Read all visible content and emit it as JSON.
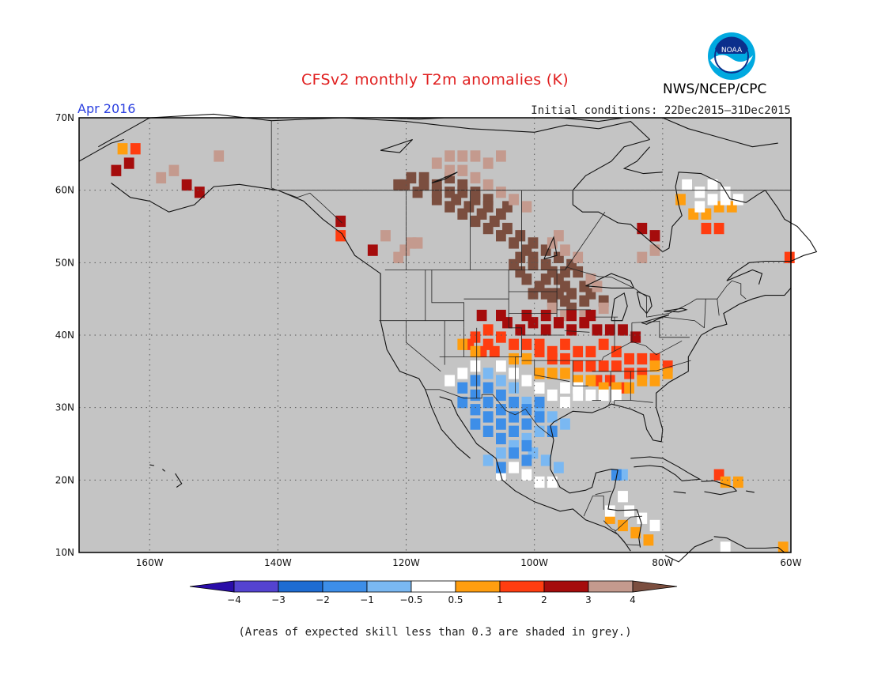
{
  "title": "CFSv2 monthly T2m anomalies (K)",
  "subtitle": "Apr 2016",
  "initial_conditions": "Initial conditions: 22Dec2015–31Dec2015",
  "agency": "NWS/NCEP/CPC",
  "logo_text": "NOAA",
  "footnote": "(Areas of expected skill less than 0.3 are shaded in grey.)",
  "lat_labels": [
    "70N",
    "60N",
    "50N",
    "40N",
    "30N",
    "20N",
    "10N"
  ],
  "lon_labels": [
    "160W",
    "140W",
    "120W",
    "100W",
    "80W",
    "60W"
  ],
  "colors": {
    "skill_grey": "#c4c4c4",
    "neutral": "#ffffff"
  },
  "colorbar": {
    "labels": [
      "−4",
      "−3",
      "−2",
      "−1",
      "−0.5",
      "0.5",
      "1",
      "2",
      "3",
      "4"
    ],
    "colors": [
      "#2a0da8",
      "#5443d0",
      "#1e6cd2",
      "#3d8ee8",
      "#7ab8f2",
      "#ffffff",
      "#ff9e0f",
      "#ff3d10",
      "#a50c0c",
      "#c49a8e",
      "#7b4e3f"
    ]
  },
  "chart_data": {
    "type": "heatmap",
    "variable": "T2m anomaly",
    "units": "K",
    "extent": {
      "lon": [
        -171,
        -60
      ],
      "lat": [
        10,
        70
      ]
    },
    "cell_deg": 1.5,
    "regions": [
      {
        "level": 4,
        "color": "#7b4e3f",
        "cells": [
          [
            -122,
            60
          ],
          [
            -119,
            59
          ],
          [
            -116,
            58
          ],
          [
            -114,
            57
          ],
          [
            -112,
            56
          ],
          [
            -110,
            55
          ],
          [
            -108,
            54
          ],
          [
            -106,
            53
          ],
          [
            -104,
            52
          ],
          [
            -102,
            51
          ],
          [
            -101,
            50
          ],
          [
            -99,
            49
          ],
          [
            -98,
            48
          ],
          [
            -97,
            47
          ],
          [
            -96,
            46
          ],
          [
            -98,
            45
          ],
          [
            -96,
            44
          ],
          [
            -105,
            57
          ],
          [
            -108,
            58
          ],
          [
            -110,
            59
          ],
          [
            -112,
            60
          ],
          [
            -114,
            61
          ],
          [
            -118,
            61
          ],
          [
            -120,
            61
          ],
          [
            -116,
            60
          ],
          [
            -113,
            58
          ],
          [
            -111,
            57
          ],
          [
            -109,
            56
          ],
          [
            -107,
            55
          ],
          [
            -105,
            54
          ],
          [
            -103,
            53
          ],
          [
            -101,
            52
          ],
          [
            -99,
            51
          ],
          [
            -97,
            50
          ],
          [
            -95,
            49
          ],
          [
            -94,
            48
          ],
          [
            -96,
            48
          ],
          [
            -99,
            47
          ],
          [
            -100,
            46
          ],
          [
            -101,
            45
          ],
          [
            -99,
            45
          ],
          [
            -97,
            45
          ],
          [
            -95,
            45
          ],
          [
            -93,
            46
          ],
          [
            -92,
            45
          ],
          [
            -90,
            44
          ],
          [
            -104,
            49
          ],
          [
            -103,
            48
          ],
          [
            -102,
            47
          ],
          [
            -103,
            50
          ],
          [
            -101,
            49
          ],
          [
            -98,
            44
          ],
          [
            -95,
            43
          ],
          [
            -93,
            44
          ],
          [
            -106,
            56
          ],
          [
            -108,
            57
          ],
          [
            -110,
            58
          ],
          [
            -112,
            59
          ],
          [
            -114,
            59
          ],
          [
            -116,
            59
          ],
          [
            -118,
            60
          ],
          [
            -121,
            60
          ]
        ]
      },
      {
        "level": 3.5,
        "color": "#c49a8e",
        "cells": [
          [
            -116,
            63
          ],
          [
            -114,
            62
          ],
          [
            -112,
            62
          ],
          [
            -110,
            61
          ],
          [
            -108,
            60
          ],
          [
            -106,
            59
          ],
          [
            -104,
            58
          ],
          [
            -102,
            57
          ],
          [
            -106,
            64
          ],
          [
            -108,
            63
          ],
          [
            -110,
            64
          ],
          [
            -112,
            64
          ],
          [
            -114,
            64
          ],
          [
            -98,
            52
          ],
          [
            -97,
            53
          ],
          [
            -96,
            51
          ],
          [
            -94,
            50
          ],
          [
            -92,
            47
          ],
          [
            -91,
            46
          ],
          [
            -90,
            43
          ],
          [
            -93,
            42
          ],
          [
            -96,
            42
          ],
          [
            -98,
            43
          ],
          [
            -120,
            52
          ],
          [
            -121,
            51
          ],
          [
            -122,
            50
          ],
          [
            -119,
            52
          ],
          [
            -82,
            51
          ],
          [
            -84,
            50
          ],
          [
            -157,
            62
          ],
          [
            -159,
            61
          ],
          [
            -150,
            64
          ],
          [
            -124,
            53
          ]
        ]
      },
      {
        "level": 2.5,
        "color": "#a50c0c",
        "cells": [
          [
            -105,
            41
          ],
          [
            -103,
            40
          ],
          [
            -101,
            41
          ],
          [
            -99,
            40
          ],
          [
            -97,
            41
          ],
          [
            -95,
            40
          ],
          [
            -93,
            41
          ],
          [
            -91,
            40
          ],
          [
            -89,
            40
          ],
          [
            -87,
            40
          ],
          [
            -85,
            39
          ],
          [
            -95,
            42
          ],
          [
            -92,
            42
          ],
          [
            -99,
            42
          ],
          [
            -102,
            42
          ],
          [
            -106,
            42
          ],
          [
            -109,
            42
          ],
          [
            -166,
            62
          ],
          [
            -164,
            63
          ],
          [
            -155,
            60
          ],
          [
            -153,
            59
          ],
          [
            -131,
            55
          ],
          [
            -126,
            51
          ],
          [
            -82,
            53
          ],
          [
            -84,
            54
          ]
        ]
      },
      {
        "level": 1.5,
        "color": "#ff3d10",
        "cells": [
          [
            -108,
            40
          ],
          [
            -106,
            39
          ],
          [
            -104,
            38
          ],
          [
            -102,
            38
          ],
          [
            -100,
            38
          ],
          [
            -98,
            37
          ],
          [
            -96,
            38
          ],
          [
            -94,
            37
          ],
          [
            -92,
            37
          ],
          [
            -90,
            38
          ],
          [
            -88,
            37
          ],
          [
            -86,
            36
          ],
          [
            -84,
            36
          ],
          [
            -82,
            36
          ],
          [
            -80,
            35
          ],
          [
            -94,
            35
          ],
          [
            -92,
            35
          ],
          [
            -90,
            35
          ],
          [
            -88,
            35
          ],
          [
            -86,
            34
          ],
          [
            -84,
            34
          ],
          [
            -96,
            36
          ],
          [
            -98,
            36
          ],
          [
            -100,
            37
          ],
          [
            -108,
            38
          ],
          [
            -110,
            39
          ],
          [
            -111,
            38
          ],
          [
            -109,
            37
          ],
          [
            -107,
            37
          ],
          [
            -89,
            33
          ],
          [
            -91,
            33
          ],
          [
            -87,
            32
          ],
          [
            -74,
            54
          ],
          [
            -72,
            54
          ],
          [
            -163,
            65
          ],
          [
            -131,
            53
          ],
          [
            -61,
            50
          ],
          [
            -72,
            20
          ]
        ]
      },
      {
        "level": 0.75,
        "color": "#ff9e0f",
        "cells": [
          [
            -100,
            34
          ],
          [
            -98,
            34
          ],
          [
            -96,
            34
          ],
          [
            -94,
            33
          ],
          [
            -92,
            33
          ],
          [
            -90,
            32
          ],
          [
            -88,
            32
          ],
          [
            -86,
            32
          ],
          [
            -84,
            33
          ],
          [
            -82,
            33
          ],
          [
            -80,
            34
          ],
          [
            -82,
            35
          ],
          [
            -110,
            37
          ],
          [
            -112,
            38
          ],
          [
            -104,
            36
          ],
          [
            -102,
            36
          ],
          [
            -76,
            56
          ],
          [
            -74,
            56
          ],
          [
            -72,
            57
          ],
          [
            -70,
            57
          ],
          [
            -78,
            58
          ],
          [
            -165,
            65
          ],
          [
            -85,
            12
          ],
          [
            -87,
            13
          ],
          [
            -89,
            14
          ],
          [
            -83,
            11
          ],
          [
            -71,
            19
          ],
          [
            -69,
            19
          ],
          [
            -62,
            10
          ]
        ]
      },
      {
        "level": -0.75,
        "color": "#ffffff",
        "cells": [
          [
            -106,
            35
          ],
          [
            -104,
            34
          ],
          [
            -102,
            33
          ],
          [
            -100,
            32
          ],
          [
            -98,
            31
          ],
          [
            -96,
            30
          ],
          [
            -94,
            31
          ],
          [
            -92,
            31
          ],
          [
            -90,
            31
          ],
          [
            -88,
            31
          ],
          [
            -110,
            35
          ],
          [
            -112,
            34
          ],
          [
            -114,
            33
          ],
          [
            -104,
            21
          ],
          [
            -106,
            20
          ],
          [
            -102,
            20
          ],
          [
            -100,
            19
          ],
          [
            -98,
            19
          ],
          [
            -100,
            32
          ],
          [
            -96,
            32
          ],
          [
            -94,
            32
          ],
          [
            -75,
            57
          ],
          [
            -73,
            58
          ],
          [
            -71,
            58
          ],
          [
            -69,
            58
          ],
          [
            -73,
            60
          ],
          [
            -71,
            59
          ],
          [
            -77,
            60
          ],
          [
            -75,
            59
          ],
          [
            -84,
            14
          ],
          [
            -86,
            15
          ],
          [
            -82,
            13
          ],
          [
            -87,
            17
          ],
          [
            -89,
            15
          ],
          [
            -71,
            10
          ]
        ]
      },
      {
        "level": -1,
        "color": "#7ab8f2",
        "cells": [
          [
            -108,
            34
          ],
          [
            -106,
            33
          ],
          [
            -104,
            32
          ],
          [
            -102,
            30
          ],
          [
            -100,
            29
          ],
          [
            -98,
            28
          ],
          [
            -96,
            27
          ],
          [
            -100,
            26
          ],
          [
            -102,
            25
          ],
          [
            -104,
            24
          ],
          [
            -106,
            23
          ],
          [
            -108,
            22
          ],
          [
            -101,
            23
          ],
          [
            -99,
            22
          ],
          [
            -97,
            21
          ],
          [
            -87,
            20
          ]
        ]
      },
      {
        "level": -1.5,
        "color": "#3d8ee8",
        "cells": [
          [
            -112,
            32
          ],
          [
            -110,
            31
          ],
          [
            -108,
            30
          ],
          [
            -106,
            29
          ],
          [
            -104,
            28
          ],
          [
            -102,
            27
          ],
          [
            -100,
            28
          ],
          [
            -98,
            26
          ],
          [
            -110,
            33
          ],
          [
            -112,
            30
          ],
          [
            -110,
            29
          ],
          [
            -108,
            28
          ],
          [
            -106,
            27
          ],
          [
            -104,
            26
          ],
          [
            -102,
            24
          ],
          [
            -106,
            25
          ],
          [
            -108,
            26
          ],
          [
            -110,
            27
          ],
          [
            -104,
            30
          ],
          [
            -106,
            31
          ],
          [
            -108,
            32
          ],
          [
            -102,
            29
          ],
          [
            -100,
            30
          ],
          [
            -104,
            23
          ],
          [
            -106,
            21
          ],
          [
            -102,
            22
          ],
          [
            -88,
            20
          ]
        ]
      }
    ]
  }
}
